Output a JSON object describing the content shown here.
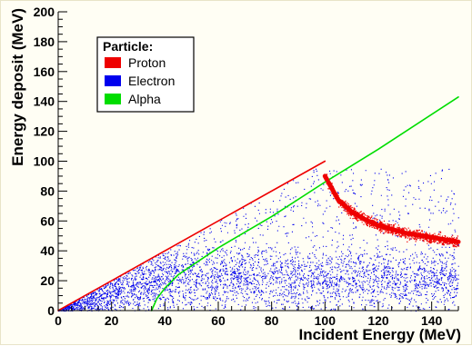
{
  "chart_data": {
    "type": "scatter",
    "xlabel": "Incident Energy (MeV)",
    "ylabel": "Energy deposit (MeV)",
    "xlim": [
      0,
      150
    ],
    "ylim": [
      0,
      200
    ],
    "x_ticks": [
      "0",
      "20",
      "40",
      "60",
      "80",
      "100",
      "120",
      "140"
    ],
    "y_ticks": [
      "0",
      "20",
      "40",
      "60",
      "80",
      "100",
      "120",
      "140",
      "160",
      "180",
      "200"
    ],
    "legend": {
      "title": "Particle:",
      "placement": "top-left",
      "entries": [
        {
          "name": "Proton",
          "color": "#ee0000"
        },
        {
          "name": "Electron",
          "color": "#0000ee"
        },
        {
          "name": "Alpha",
          "color": "#00dd00"
        }
      ]
    },
    "grid": false,
    "series": [
      {
        "name": "Proton",
        "color": "#ee0000",
        "segments": [
          {
            "x": [
              0,
              100
            ],
            "y": [
              0,
              100
            ]
          },
          {
            "x": [
              100,
              105,
              110,
              115,
              120,
              130,
              140,
              150
            ],
            "y": [
              90,
              74,
              66,
              61,
              57,
              52,
              49,
              46
            ]
          }
        ]
      },
      {
        "name": "Electron",
        "color": "#0000ee",
        "description_range": {
          "x": [
            0,
            150
          ],
          "y": [
            0,
            95
          ]
        }
      },
      {
        "name": "Alpha",
        "color": "#00dd00",
        "segments": [
          {
            "x": [
              35,
              37,
              40,
              45,
              50,
              60,
              80,
              100,
              120,
              150
            ],
            "y": [
              0,
              8,
              15,
              24,
              30,
              42,
              63,
              86,
              108,
              143
            ]
          }
        ]
      }
    ]
  }
}
